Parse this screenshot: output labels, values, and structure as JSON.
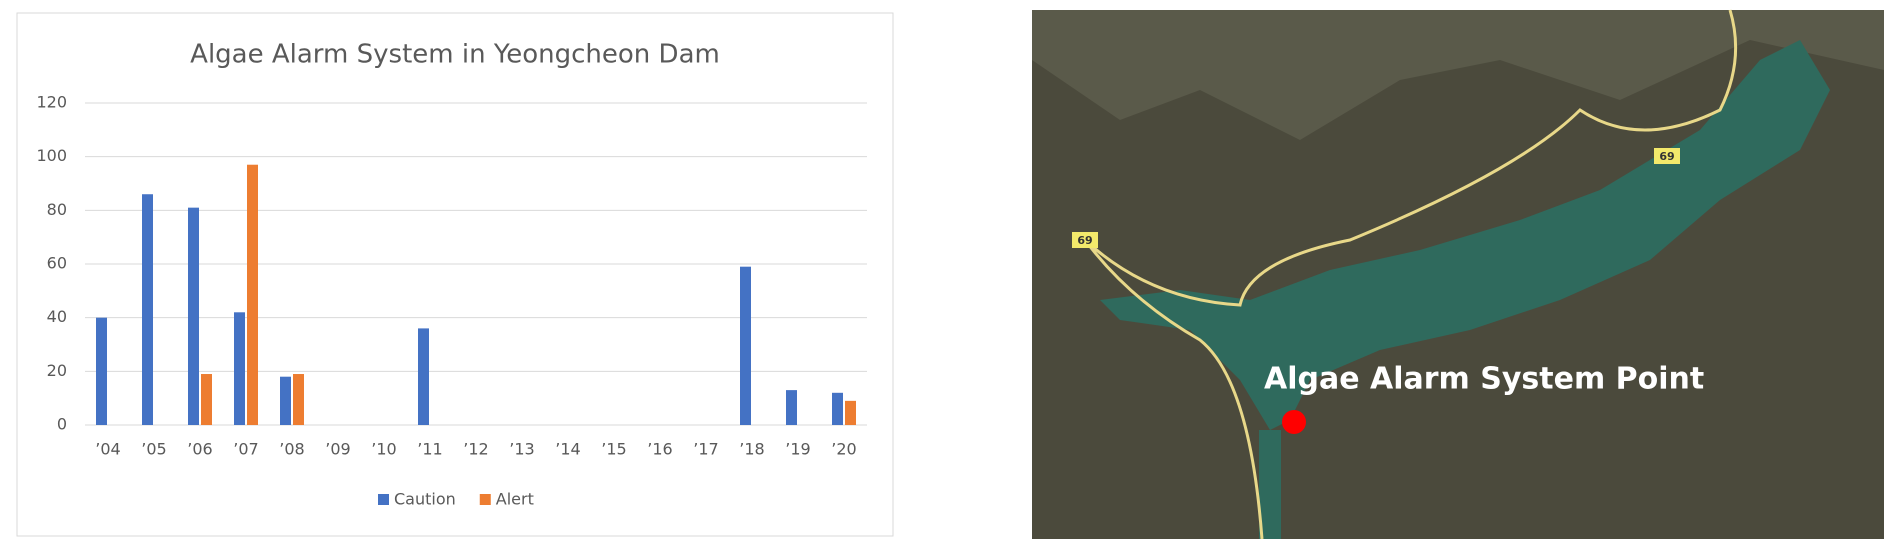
{
  "chart_data": {
    "type": "bar",
    "title": "Algae Alarm System in Yeongcheon Dam",
    "categories": [
      "’04",
      "’05",
      "’06",
      "’07",
      "’08",
      "’09",
      "’10",
      "’11",
      "’12",
      "’13",
      "’14",
      "’15",
      "’16",
      "’17",
      "’18",
      "’19",
      "’20"
    ],
    "series": [
      {
        "name": "Caution",
        "color": "#4472c4",
        "values": [
          40,
          86,
          81,
          42,
          18,
          0,
          0,
          36,
          0,
          0,
          0,
          0,
          0,
          0,
          59,
          13,
          12
        ]
      },
      {
        "name": "Alert",
        "color": "#ed7d31",
        "values": [
          0,
          0,
          19,
          97,
          19,
          0,
          0,
          0,
          0,
          0,
          0,
          0,
          0,
          0,
          0,
          0,
          9
        ]
      }
    ],
    "ylim": [
      0,
      120
    ],
    "yticks": [
      0,
      20,
      40,
      60,
      80,
      100,
      120
    ],
    "grid": true,
    "legend": "bottom"
  },
  "map": {
    "label": "Algae Alarm System Point",
    "road_labels": [
      "69",
      "69"
    ]
  }
}
